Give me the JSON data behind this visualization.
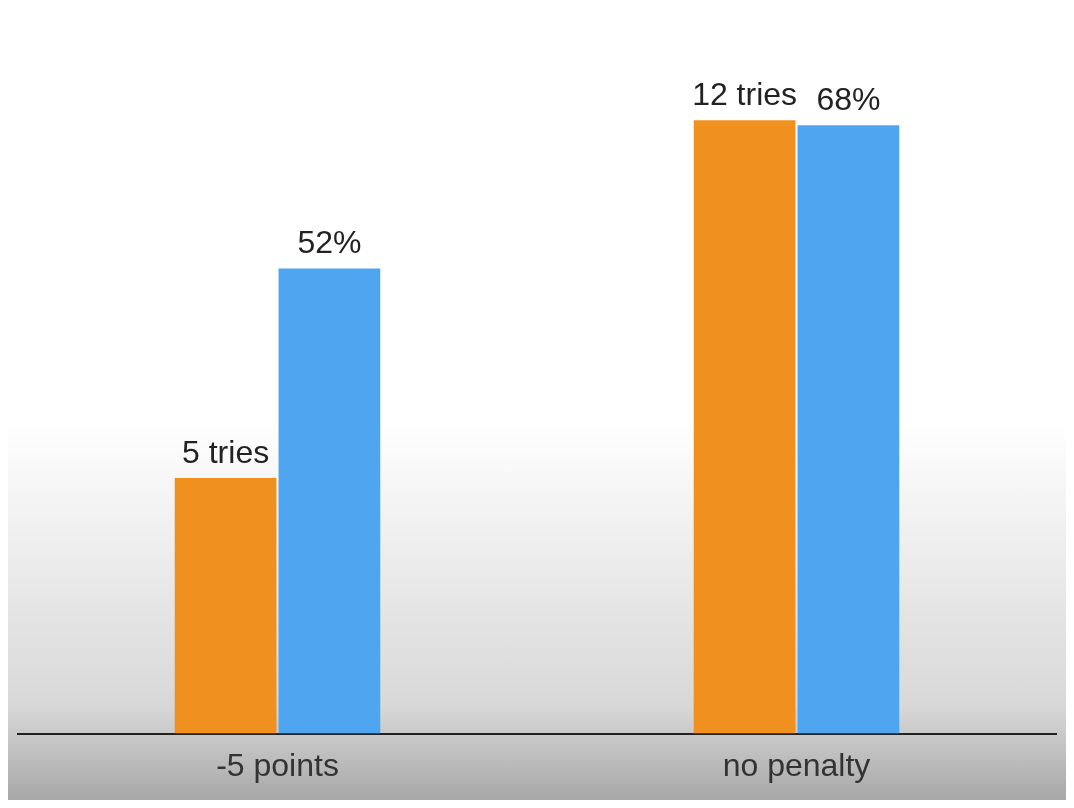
{
  "chart_data": {
    "type": "bar",
    "categories": [
      "-5 points",
      "no penalty"
    ],
    "series": [
      {
        "color": "#f0901e",
        "values": [
          5,
          12
        ],
        "value_labels": [
          "5 tries",
          "12 tries"
        ],
        "axis": "y2"
      },
      {
        "color": "#4ea6f0",
        "values": [
          52,
          68
        ],
        "value_labels": [
          "52%",
          "68%"
        ]
      }
    ],
    "grid": false,
    "legend": false
  }
}
